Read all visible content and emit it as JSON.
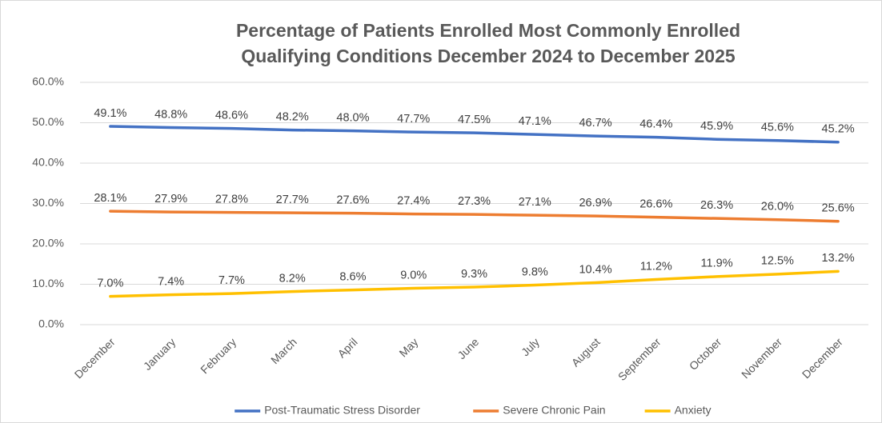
{
  "chart_data": {
    "type": "line",
    "title": [
      "Percentage of Patients Enrolled Most Commonly Enrolled",
      "Qualifying Conditions December 2024 to December 2025"
    ],
    "categories": [
      "December",
      "January",
      "February",
      "March",
      "April",
      "May",
      "June",
      "July",
      "August",
      "September",
      "October",
      "November",
      "December"
    ],
    "series": [
      {
        "name": "Post-Traumatic Stress Disorder",
        "color": "#4472c4",
        "values": [
          49.1,
          48.8,
          48.6,
          48.2,
          48.0,
          47.7,
          47.5,
          47.1,
          46.7,
          46.4,
          45.9,
          45.6,
          45.2
        ],
        "value_labels": [
          "49.1%",
          "48.8%",
          "48.6%",
          "48.2%",
          "48.0%",
          "47.7%",
          "47.5%",
          "47.1%",
          "46.7%",
          "46.4%",
          "45.9%",
          "45.6%",
          "45.2%"
        ]
      },
      {
        "name": "Severe Chronic Pain",
        "color": "#ed7d31",
        "values": [
          28.1,
          27.9,
          27.8,
          27.7,
          27.6,
          27.4,
          27.3,
          27.1,
          26.9,
          26.6,
          26.3,
          26.0,
          25.6
        ],
        "value_labels": [
          "28.1%",
          "27.9%",
          "27.8%",
          "27.7%",
          "27.6%",
          "27.4%",
          "27.3%",
          "27.1%",
          "26.9%",
          "26.6%",
          "26.3%",
          "26.0%",
          "25.6%"
        ]
      },
      {
        "name": "Anxiety",
        "color": "#ffc000",
        "values": [
          7.0,
          7.4,
          7.7,
          8.2,
          8.6,
          9.0,
          9.3,
          9.8,
          10.4,
          11.2,
          11.9,
          12.5,
          13.2
        ],
        "value_labels": [
          "7.0%",
          "7.4%",
          "7.7%",
          "8.2%",
          "8.6%",
          "9.0%",
          "9.3%",
          "9.8%",
          "10.4%",
          "11.2%",
          "11.9%",
          "12.5%",
          "13.2%"
        ]
      }
    ],
    "ylim": [
      0,
      60
    ],
    "yticks": [
      {
        "value": 0,
        "label": "0.0%"
      },
      {
        "value": 10,
        "label": "10.0%"
      },
      {
        "value": 20,
        "label": "20.0%"
      },
      {
        "value": 30,
        "label": "30.0%"
      },
      {
        "value": 40,
        "label": "40.0%"
      },
      {
        "value": 50,
        "label": "50.0%"
      },
      {
        "value": 60,
        "label": "60.0%"
      }
    ],
    "grid": true,
    "legend": "bottom"
  }
}
